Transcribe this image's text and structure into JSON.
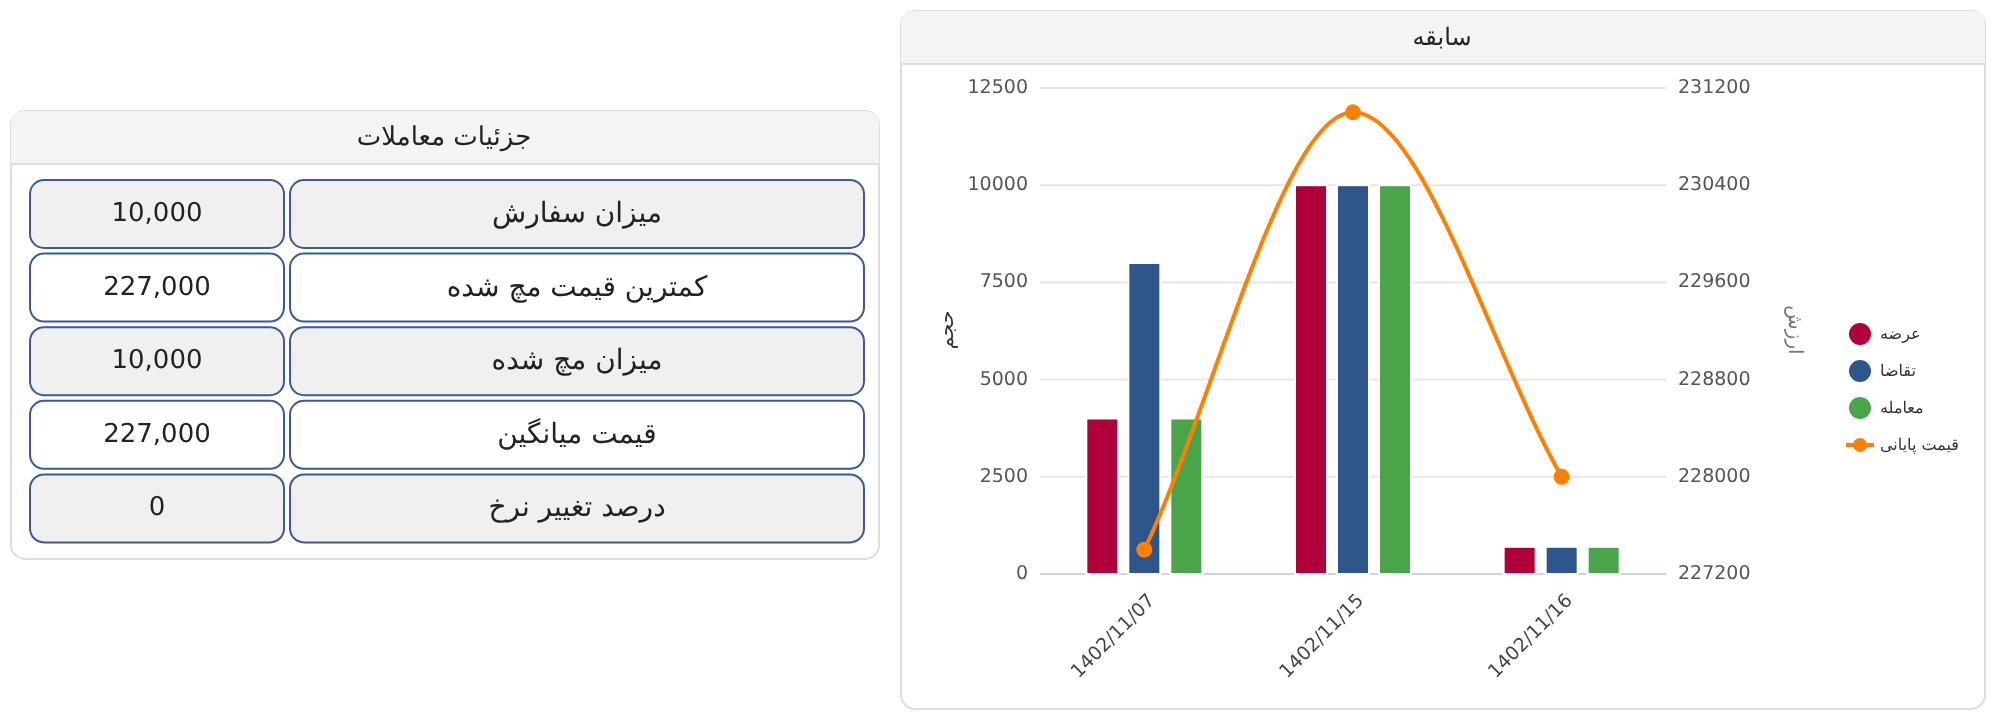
{
  "chart_data": [
    {
      "type": "other",
      "title": "جزئیات معاملات",
      "categories": [
        "میزان سفارش",
        "کمترین قیمت مچ شده",
        "میزان مچ شده",
        "قیمت میانگین",
        "درصد تغییر نرخ"
      ],
      "value_labels": [
        "10,000",
        "227,000",
        "10,000",
        "227,000",
        "0"
      ]
    },
    {
      "type": "bar",
      "title": "سابقه",
      "ylabel": "حجم",
      "y2label": "ارزش",
      "categories": [
        "1402/11/07",
        "1402/11/15",
        "1402/11/16"
      ],
      "series": [
        {
          "name": "عرضه",
          "color": "#b0003a",
          "values": [
            4000,
            10000,
            700
          ]
        },
        {
          "name": "تقاضا",
          "color": "#2f568b",
          "values": [
            8000,
            10000,
            700
          ]
        },
        {
          "name": "معامله",
          "color": "#4aa54a",
          "values": [
            4000,
            10000,
            700
          ]
        },
        {
          "name": "قیمت پایانی",
          "type": "line",
          "axis": "y2",
          "marker": "circle",
          "color": "#ff8000",
          "values": [
            227400,
            231000,
            228000
          ]
        }
      ],
      "ylim": [
        0,
        12500
      ],
      "yticks": [
        0,
        2500,
        5000,
        7500,
        10000,
        12500
      ],
      "y2lim": [
        227200,
        231200
      ],
      "y2ticks": [
        227200,
        228000,
        228800,
        229600,
        230400,
        231200
      ],
      "grid": "y",
      "legend": "right"
    }
  ]
}
